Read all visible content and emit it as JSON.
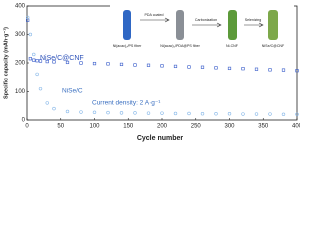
{
  "chart_data": {
    "type": "scatter",
    "x_label": "Cycle number",
    "y_label": "Specific capacity (mAh·g⁻¹)",
    "xlim": [
      0,
      400
    ],
    "xticks": [
      0,
      50,
      100,
      150,
      200,
      250,
      300,
      350,
      400
    ],
    "ylim": [
      0,
      400
    ],
    "yticks": [
      0,
      100,
      200,
      300,
      400
    ],
    "annotation": "Current density: 2 A·g⁻¹",
    "x": [
      1,
      5,
      10,
      15,
      20,
      30,
      40,
      60,
      80,
      100,
      120,
      140,
      160,
      180,
      200,
      220,
      240,
      260,
      280,
      300,
      320,
      340,
      360,
      380,
      400
    ],
    "series": [
      {
        "name": "NiSe/C@CNF",
        "color": "#3559c9",
        "marker": "square",
        "values": [
          350,
          215,
          210,
          208,
          207,
          205,
          204,
          202,
          200,
          198,
          197,
          195,
          193,
          192,
          190,
          188,
          186,
          185,
          183,
          181,
          180,
          178,
          176,
          175,
          173
        ]
      },
      {
        "name": "NiSe/C",
        "color": "#86b7e8",
        "marker": "circle",
        "values": [
          360,
          300,
          230,
          160,
          110,
          60,
          40,
          30,
          28,
          27,
          26,
          25,
          25,
          24,
          24,
          23,
          23,
          22,
          22,
          22,
          21,
          21,
          21,
          20,
          20
        ]
      }
    ],
    "inset": {
      "steps": [
        "PDA coated",
        "Carbonization",
        "Selenizing"
      ],
      "fibers": [
        "Ni(acac)₂/PS fiber",
        "Ni(acac)₂/PDA@PS fiber",
        "Ni-CNF",
        "NiSe/C@CNF"
      ]
    }
  }
}
